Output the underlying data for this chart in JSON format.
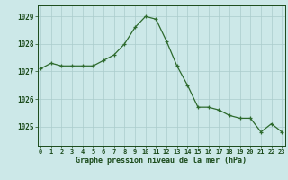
{
  "hours": [
    0,
    1,
    2,
    3,
    4,
    5,
    6,
    7,
    8,
    9,
    10,
    11,
    12,
    13,
    14,
    15,
    16,
    17,
    18,
    19,
    20,
    21,
    22,
    23
  ],
  "pressure": [
    1027.1,
    1027.3,
    1027.2,
    1027.2,
    1027.2,
    1027.2,
    1027.4,
    1027.6,
    1028.0,
    1028.6,
    1029.0,
    1028.9,
    1028.1,
    1027.2,
    1026.5,
    1025.7,
    1025.7,
    1025.6,
    1025.4,
    1025.3,
    1025.3,
    1024.8,
    1025.1,
    1024.8
  ],
  "line_color": "#2d6a2d",
  "marker": "+",
  "marker_size": 3,
  "bg_color": "#cce8e8",
  "grid_color": "#aacccc",
  "ylabel_ticks": [
    1025,
    1026,
    1027,
    1028,
    1029
  ],
  "xlabel": "Graphe pression niveau de la mer (hPa)",
  "text_color": "#1a4a1a",
  "ylim": [
    1024.3,
    1029.4
  ],
  "xlim": [
    -0.3,
    23.3
  ],
  "figsize": [
    3.2,
    2.0
  ],
  "dpi": 100
}
